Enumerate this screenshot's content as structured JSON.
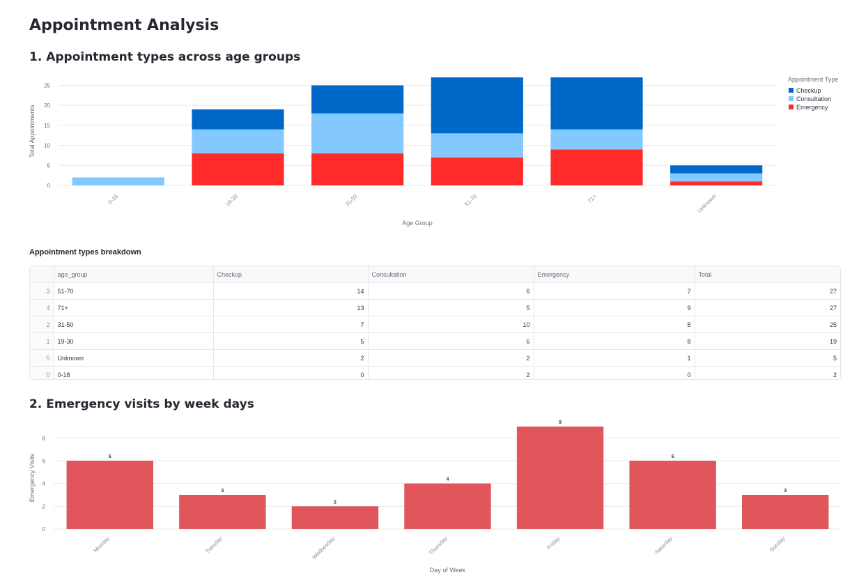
{
  "page": {
    "title": "Appointment Analysis",
    "section1_title": "1. Appointment types across age groups",
    "table_title": "Appointment types breakdown",
    "section2_title": "2. Emergency visits by week days"
  },
  "table": {
    "columns": [
      "",
      "age_group",
      "Checkup",
      "Consultation",
      "Emergency",
      "Total"
    ],
    "rows": [
      [
        "3",
        "51-70",
        "14",
        "6",
        "7",
        "27"
      ],
      [
        "4",
        "71+",
        "13",
        "5",
        "9",
        "27"
      ],
      [
        "2",
        "31-50",
        "7",
        "10",
        "8",
        "25"
      ],
      [
        "1",
        "19-30",
        "5",
        "6",
        "8",
        "19"
      ],
      [
        "5",
        "Unknown",
        "2",
        "2",
        "1",
        "5"
      ],
      [
        "0",
        "0-18",
        "0",
        "2",
        "0",
        "2"
      ]
    ]
  },
  "chart_data": [
    {
      "type": "bar",
      "stacked": true,
      "categories": [
        "0-18",
        "19-30",
        "31-50",
        "51-70",
        "71+",
        "Unknown"
      ],
      "series": [
        {
          "name": "Emergency",
          "values": [
            0,
            8,
            8,
            7,
            9,
            1
          ],
          "color": "#ff2b2b"
        },
        {
          "name": "Consultation",
          "values": [
            2,
            6,
            10,
            6,
            5,
            2
          ],
          "color": "#83c9ff"
        },
        {
          "name": "Checkup",
          "values": [
            0,
            5,
            7,
            14,
            13,
            2
          ],
          "color": "#0068c9"
        }
      ],
      "legend_title": "Appointment Type",
      "legend_order": [
        "Checkup",
        "Consultation",
        "Emergency"
      ],
      "legend_position": "top-right",
      "xlabel": "Age Group",
      "ylabel": "Total Appointments",
      "yticks": [
        0,
        5,
        10,
        15,
        20,
        25
      ],
      "ylim": [
        0,
        27
      ],
      "grid": true
    },
    {
      "type": "bar",
      "categories": [
        "Monday",
        "Tuesday",
        "Wednesday",
        "Thursday",
        "Friday",
        "Saturday",
        "Sunday"
      ],
      "values": [
        6,
        3,
        2,
        4,
        9,
        6,
        3
      ],
      "color": "#e0565b",
      "data_labels": true,
      "xlabel": "Day of Week",
      "ylabel": "Emergency Visits",
      "yticks": [
        0,
        2,
        4,
        6,
        8
      ],
      "ylim": [
        0,
        9
      ],
      "grid": true
    }
  ]
}
